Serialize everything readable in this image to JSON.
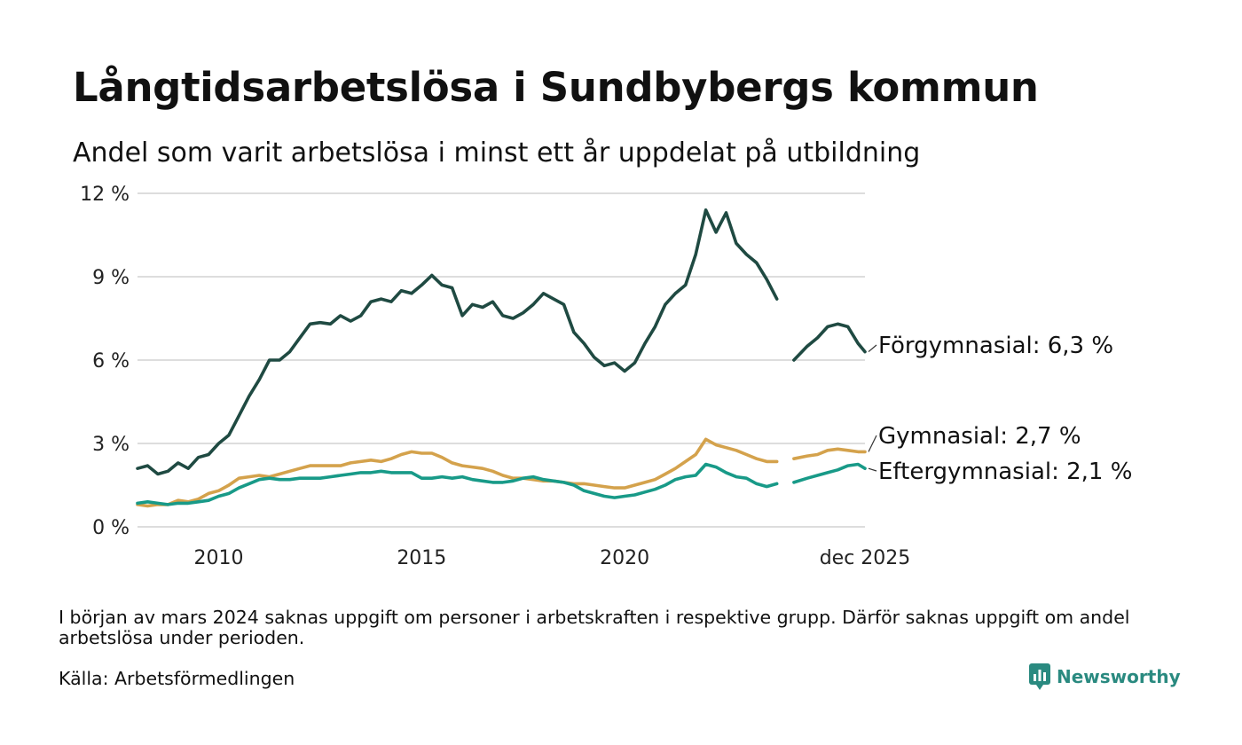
{
  "chart_data": {
    "type": "line",
    "title": "Långtidsarbetslösa i Sundbybergs kommun",
    "subtitle": "Andel som varit arbetslösa i minst ett år uppdelat på utbildning",
    "xlabel": "",
    "ylabel": "",
    "xlim": [
      2008.0,
      2025.92
    ],
    "ylim": [
      0,
      12
    ],
    "yticks": [
      {
        "value": 0,
        "label": "0 %"
      },
      {
        "value": 3,
        "label": "3 %"
      },
      {
        "value": 6,
        "label": "6 %"
      },
      {
        "value": 9,
        "label": "9 %"
      },
      {
        "value": 12,
        "label": "12 %"
      }
    ],
    "xticks": [
      {
        "value": 2010,
        "label": "2010"
      },
      {
        "value": 2015,
        "label": "2015"
      },
      {
        "value": 2020,
        "label": "2020"
      },
      {
        "value": 2025.92,
        "label": "dec 2025"
      }
    ],
    "gap": [
      2023.75,
      2024.17
    ],
    "series": [
      {
        "name": "Förgymnasial",
        "end_label": "Förgymnasial: 6,3 %",
        "color": "#1f4a42",
        "points": [
          [
            2008.0,
            2.1
          ],
          [
            2008.25,
            2.2
          ],
          [
            2008.5,
            1.9
          ],
          [
            2008.75,
            2.0
          ],
          [
            2009.0,
            2.3
          ],
          [
            2009.25,
            2.1
          ],
          [
            2009.5,
            2.5
          ],
          [
            2009.75,
            2.6
          ],
          [
            2010.0,
            3.0
          ],
          [
            2010.25,
            3.3
          ],
          [
            2010.5,
            4.0
          ],
          [
            2010.75,
            4.7
          ],
          [
            2011.0,
            5.3
          ],
          [
            2011.25,
            6.0
          ],
          [
            2011.5,
            6.0
          ],
          [
            2011.75,
            6.3
          ],
          [
            2012.0,
            6.8
          ],
          [
            2012.25,
            7.3
          ],
          [
            2012.5,
            7.35
          ],
          [
            2012.75,
            7.3
          ],
          [
            2013.0,
            7.6
          ],
          [
            2013.25,
            7.4
          ],
          [
            2013.5,
            7.6
          ],
          [
            2013.75,
            8.1
          ],
          [
            2014.0,
            8.2
          ],
          [
            2014.25,
            8.1
          ],
          [
            2014.5,
            8.5
          ],
          [
            2014.75,
            8.4
          ],
          [
            2015.0,
            8.7
          ],
          [
            2015.25,
            9.05
          ],
          [
            2015.5,
            8.7
          ],
          [
            2015.75,
            8.6
          ],
          [
            2016.0,
            7.6
          ],
          [
            2016.25,
            8.0
          ],
          [
            2016.5,
            7.9
          ],
          [
            2016.75,
            8.1
          ],
          [
            2017.0,
            7.6
          ],
          [
            2017.25,
            7.5
          ],
          [
            2017.5,
            7.7
          ],
          [
            2017.75,
            8.0
          ],
          [
            2018.0,
            8.4
          ],
          [
            2018.25,
            8.2
          ],
          [
            2018.5,
            8.0
          ],
          [
            2018.75,
            7.0
          ],
          [
            2019.0,
            6.6
          ],
          [
            2019.25,
            6.1
          ],
          [
            2019.5,
            5.8
          ],
          [
            2019.75,
            5.9
          ],
          [
            2020.0,
            5.6
          ],
          [
            2020.25,
            5.9
          ],
          [
            2020.5,
            6.6
          ],
          [
            2020.75,
            7.2
          ],
          [
            2021.0,
            8.0
          ],
          [
            2021.25,
            8.4
          ],
          [
            2021.5,
            8.7
          ],
          [
            2021.75,
            9.8
          ],
          [
            2022.0,
            11.4
          ],
          [
            2022.25,
            10.6
          ],
          [
            2022.5,
            11.3
          ],
          [
            2022.75,
            10.2
          ],
          [
            2023.0,
            9.8
          ],
          [
            2023.25,
            9.5
          ],
          [
            2023.5,
            8.9
          ],
          [
            2023.75,
            8.2
          ],
          [
            2024.17,
            6.0
          ],
          [
            2024.5,
            6.5
          ],
          [
            2024.75,
            6.8
          ],
          [
            2025.0,
            7.2
          ],
          [
            2025.25,
            7.3
          ],
          [
            2025.5,
            7.2
          ],
          [
            2025.75,
            6.6
          ],
          [
            2025.92,
            6.3
          ]
        ]
      },
      {
        "name": "Gymnasial",
        "end_label": "Gymnasial: 2,7 %",
        "color": "#d4a24c",
        "points": [
          [
            2008.0,
            0.8
          ],
          [
            2008.25,
            0.75
          ],
          [
            2008.5,
            0.8
          ],
          [
            2008.75,
            0.8
          ],
          [
            2009.0,
            0.95
          ],
          [
            2009.25,
            0.9
          ],
          [
            2009.5,
            1.0
          ],
          [
            2009.75,
            1.2
          ],
          [
            2010.0,
            1.3
          ],
          [
            2010.25,
            1.5
          ],
          [
            2010.5,
            1.75
          ],
          [
            2010.75,
            1.8
          ],
          [
            2011.0,
            1.85
          ],
          [
            2011.25,
            1.8
          ],
          [
            2011.5,
            1.9
          ],
          [
            2011.75,
            2.0
          ],
          [
            2012.0,
            2.1
          ],
          [
            2012.25,
            2.2
          ],
          [
            2012.5,
            2.2
          ],
          [
            2012.75,
            2.2
          ],
          [
            2013.0,
            2.2
          ],
          [
            2013.25,
            2.3
          ],
          [
            2013.5,
            2.35
          ],
          [
            2013.75,
            2.4
          ],
          [
            2014.0,
            2.35
          ],
          [
            2014.25,
            2.45
          ],
          [
            2014.5,
            2.6
          ],
          [
            2014.75,
            2.7
          ],
          [
            2015.0,
            2.65
          ],
          [
            2015.25,
            2.65
          ],
          [
            2015.5,
            2.5
          ],
          [
            2015.75,
            2.3
          ],
          [
            2016.0,
            2.2
          ],
          [
            2016.25,
            2.15
          ],
          [
            2016.5,
            2.1
          ],
          [
            2016.75,
            2.0
          ],
          [
            2017.0,
            1.85
          ],
          [
            2017.25,
            1.75
          ],
          [
            2017.5,
            1.75
          ],
          [
            2017.75,
            1.7
          ],
          [
            2018.0,
            1.65
          ],
          [
            2018.25,
            1.65
          ],
          [
            2018.5,
            1.6
          ],
          [
            2018.75,
            1.55
          ],
          [
            2019.0,
            1.55
          ],
          [
            2019.25,
            1.5
          ],
          [
            2019.5,
            1.45
          ],
          [
            2019.75,
            1.4
          ],
          [
            2020.0,
            1.4
          ],
          [
            2020.25,
            1.5
          ],
          [
            2020.5,
            1.6
          ],
          [
            2020.75,
            1.7
          ],
          [
            2021.0,
            1.9
          ],
          [
            2021.25,
            2.1
          ],
          [
            2021.5,
            2.35
          ],
          [
            2021.75,
            2.6
          ],
          [
            2022.0,
            3.15
          ],
          [
            2022.25,
            2.95
          ],
          [
            2022.5,
            2.85
          ],
          [
            2022.75,
            2.75
          ],
          [
            2023.0,
            2.6
          ],
          [
            2023.25,
            2.45
          ],
          [
            2023.5,
            2.35
          ],
          [
            2023.75,
            2.35
          ],
          [
            2024.17,
            2.45
          ],
          [
            2024.5,
            2.55
          ],
          [
            2024.75,
            2.6
          ],
          [
            2025.0,
            2.75
          ],
          [
            2025.25,
            2.8
          ],
          [
            2025.5,
            2.75
          ],
          [
            2025.75,
            2.7
          ],
          [
            2025.92,
            2.7
          ]
        ]
      },
      {
        "name": "Eftergymnasial",
        "end_label": "Eftergymnasial: 2,1 %",
        "color": "#189a88",
        "points": [
          [
            2008.0,
            0.85
          ],
          [
            2008.25,
            0.9
          ],
          [
            2008.5,
            0.85
          ],
          [
            2008.75,
            0.8
          ],
          [
            2009.0,
            0.85
          ],
          [
            2009.25,
            0.85
          ],
          [
            2009.5,
            0.9
          ],
          [
            2009.75,
            0.95
          ],
          [
            2010.0,
            1.1
          ],
          [
            2010.25,
            1.2
          ],
          [
            2010.5,
            1.4
          ],
          [
            2010.75,
            1.55
          ],
          [
            2011.0,
            1.7
          ],
          [
            2011.25,
            1.75
          ],
          [
            2011.5,
            1.7
          ],
          [
            2011.75,
            1.7
          ],
          [
            2012.0,
            1.75
          ],
          [
            2012.25,
            1.75
          ],
          [
            2012.5,
            1.75
          ],
          [
            2012.75,
            1.8
          ],
          [
            2013.0,
            1.85
          ],
          [
            2013.25,
            1.9
          ],
          [
            2013.5,
            1.95
          ],
          [
            2013.75,
            1.95
          ],
          [
            2014.0,
            2.0
          ],
          [
            2014.25,
            1.95
          ],
          [
            2014.5,
            1.95
          ],
          [
            2014.75,
            1.95
          ],
          [
            2015.0,
            1.75
          ],
          [
            2015.25,
            1.75
          ],
          [
            2015.5,
            1.8
          ],
          [
            2015.75,
            1.75
          ],
          [
            2016.0,
            1.8
          ],
          [
            2016.25,
            1.7
          ],
          [
            2016.5,
            1.65
          ],
          [
            2016.75,
            1.6
          ],
          [
            2017.0,
            1.6
          ],
          [
            2017.25,
            1.65
          ],
          [
            2017.5,
            1.75
          ],
          [
            2017.75,
            1.8
          ],
          [
            2018.0,
            1.7
          ],
          [
            2018.25,
            1.65
          ],
          [
            2018.5,
            1.6
          ],
          [
            2018.75,
            1.5
          ],
          [
            2019.0,
            1.3
          ],
          [
            2019.25,
            1.2
          ],
          [
            2019.5,
            1.1
          ],
          [
            2019.75,
            1.05
          ],
          [
            2020.0,
            1.1
          ],
          [
            2020.25,
            1.15
          ],
          [
            2020.5,
            1.25
          ],
          [
            2020.75,
            1.35
          ],
          [
            2021.0,
            1.5
          ],
          [
            2021.25,
            1.7
          ],
          [
            2021.5,
            1.8
          ],
          [
            2021.75,
            1.85
          ],
          [
            2022.0,
            2.25
          ],
          [
            2022.25,
            2.15
          ],
          [
            2022.5,
            1.95
          ],
          [
            2022.75,
            1.8
          ],
          [
            2023.0,
            1.75
          ],
          [
            2023.25,
            1.55
          ],
          [
            2023.5,
            1.45
          ],
          [
            2023.75,
            1.55
          ],
          [
            2024.17,
            1.6
          ],
          [
            2024.5,
            1.75
          ],
          [
            2024.75,
            1.85
          ],
          [
            2025.0,
            1.95
          ],
          [
            2025.25,
            2.05
          ],
          [
            2025.5,
            2.2
          ],
          [
            2025.75,
            2.25
          ],
          [
            2025.92,
            2.1
          ]
        ]
      }
    ]
  },
  "footer": {
    "note": "I början av mars 2024 saknas uppgift om personer i arbetskraften i respektive grupp. Därför saknas uppgift om andel arbetslösa under perioden.",
    "source": "Källa: Arbetsförmedlingen",
    "brand": "Newsworthy"
  },
  "colors": {
    "grid": "#dddddd",
    "brand": "#2a8a80"
  }
}
